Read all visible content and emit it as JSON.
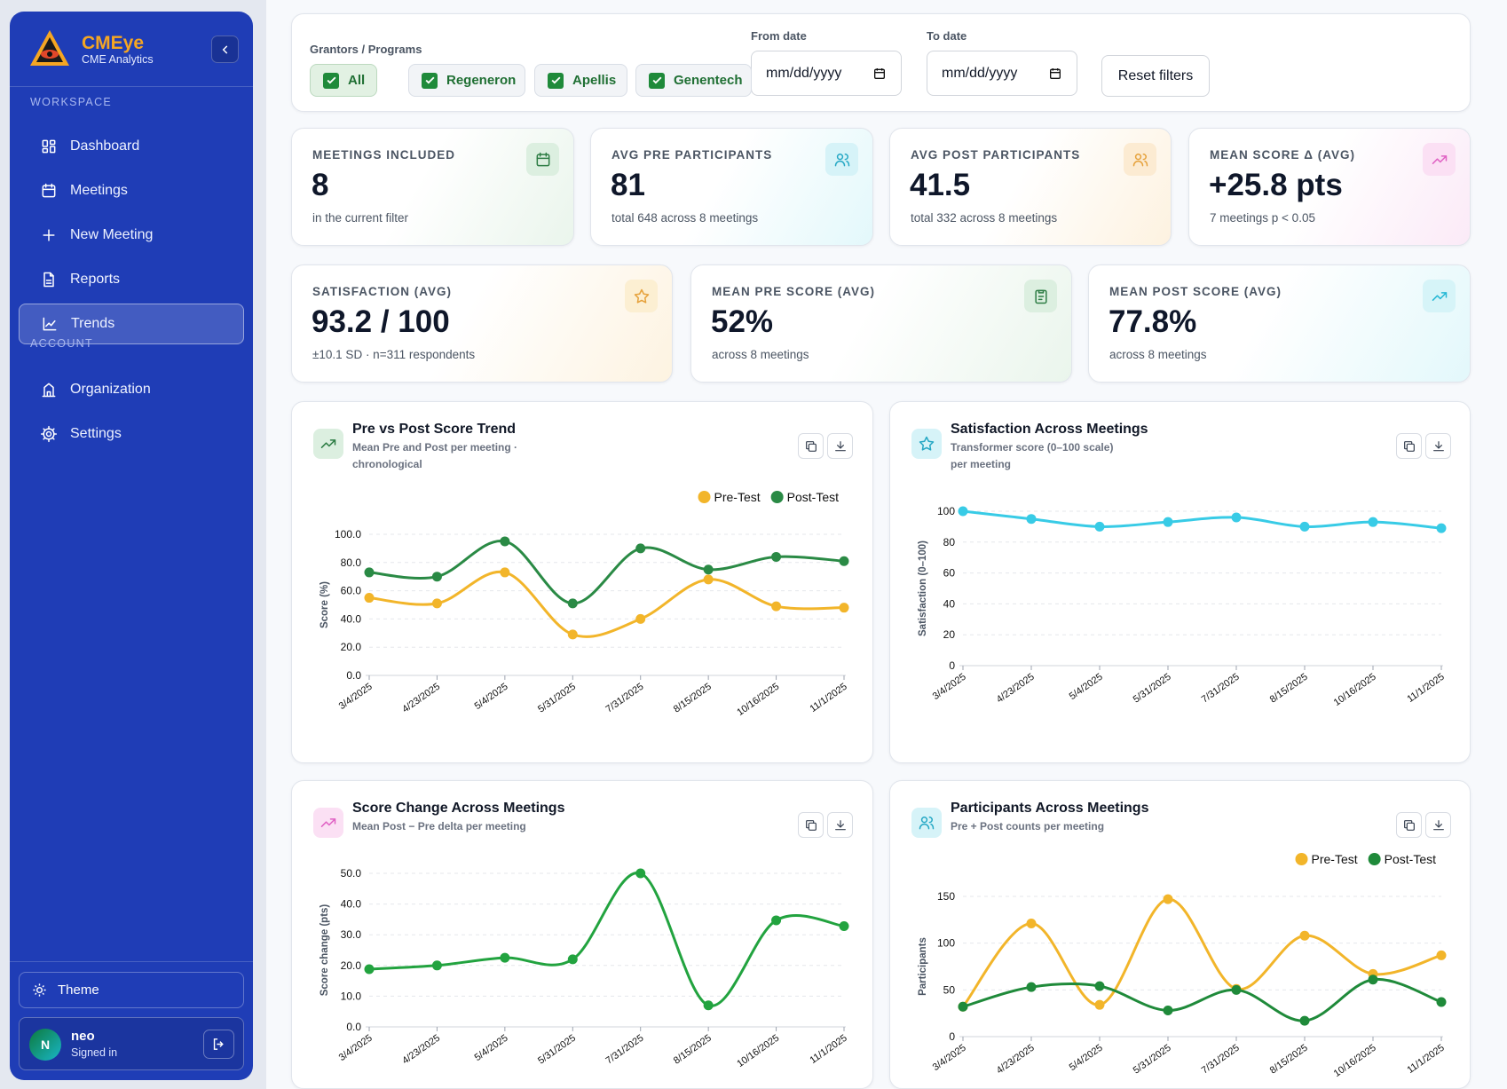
{
  "sidebar": {
    "brand": "CMEye",
    "brand_sub": "CME Analytics",
    "sections": [
      {
        "heading": "WORKSPACE",
        "items": [
          "Dashboard",
          "Meetings",
          "New Meeting",
          "Reports",
          "Trends"
        ]
      },
      {
        "heading": "ACCOUNT",
        "items": [
          "Organization",
          "Settings"
        ]
      }
    ],
    "active": "Trends",
    "theme": "Theme",
    "user": {
      "initial": "N",
      "name": "neo",
      "status": "Signed in"
    }
  },
  "filters": {
    "grantors_label": "Grantors / Programs",
    "options": [
      "All",
      "Regeneron",
      "Apellis",
      "Genentech"
    ],
    "from_label": "From date",
    "from_placeholder": "mm/dd/yyyy",
    "to_label": "To date",
    "to_placeholder": "mm/dd/yyyy",
    "reset": "Reset filters"
  },
  "kpis": [
    {
      "label": "MEETINGS INCLUDED",
      "value": "8",
      "note": "in the current filter"
    },
    {
      "label": "AVG PRE PARTICIPANTS",
      "value": "81",
      "note": "total 648 across 8 meetings"
    },
    {
      "label": "AVG POST PARTICIPANTS",
      "value": "41.5",
      "note": "total 332 across 8 meetings"
    },
    {
      "label": "MEAN SCORE Δ (AVG)",
      "value": "+25.8 pts",
      "note": "7 meetings p < 0.05"
    },
    {
      "label": "SATISFACTION (AVG)",
      "value": "93.2 / 100",
      "note": "±10.1 SD · n=311 respondents"
    },
    {
      "label": "MEAN PRE SCORE (AVG)",
      "value": "52%",
      "note": "across 8 meetings"
    },
    {
      "label": "MEAN POST SCORE (AVG)",
      "value": "77.8%",
      "note": "across 8 meetings"
    }
  ],
  "chart_data": [
    {
      "type": "line",
      "title": "Pre vs Post Score Trend",
      "subtitle": "Mean Pre and Post per meeting · chronological",
      "ylabel": "Score (%)",
      "categories": [
        "3/4/2025",
        "4/23/2025",
        "5/4/2025",
        "5/31/2025",
        "7/31/2025",
        "8/15/2025",
        "10/16/2025",
        "11/1/2025"
      ],
      "series": [
        {
          "name": "Pre-Test",
          "color": "#f2b52a",
          "values": [
            55,
            51,
            73,
            29,
            40,
            68,
            49,
            48
          ]
        },
        {
          "name": "Post-Test",
          "color": "#2a8a45",
          "values": [
            73,
            70,
            95,
            51,
            90,
            75,
            84,
            81
          ]
        }
      ],
      "ylim": [
        0,
        100
      ],
      "yticks": [
        {
          "value": 0,
          "label": "0.0"
        },
        {
          "value": 20,
          "label": "20.0"
        },
        {
          "value": 40,
          "label": "40.0"
        },
        {
          "value": 60,
          "label": "60.0"
        },
        {
          "value": 80,
          "label": "80.0"
        },
        {
          "value": 100,
          "label": "100.0"
        }
      ],
      "grid": true,
      "legend": "top-right"
    },
    {
      "type": "line",
      "title": "Satisfaction Across Meetings",
      "subtitle": "Transformer score (0–100 scale) per meeting",
      "ylabel": "Satisfaction (0–100)",
      "categories": [
        "3/4/2025",
        "4/23/2025",
        "5/4/2025",
        "5/31/2025",
        "7/31/2025",
        "8/15/2025",
        "10/16/2025",
        "11/1/2025"
      ],
      "color": "#38cbe6",
      "values": [
        100,
        95,
        90,
        93,
        96,
        90,
        93,
        89
      ],
      "ylim": [
        0,
        100
      ],
      "yticks": [
        0,
        20,
        40,
        60,
        80,
        100
      ],
      "grid": true
    },
    {
      "type": "line",
      "title": "Score Change Across Meetings",
      "subtitle": "Mean Post − Pre delta per meeting",
      "ylabel": "Score change (pts)",
      "categories": [
        "3/4/2025",
        "4/23/2025",
        "5/4/2025",
        "5/31/2025",
        "7/31/2025",
        "8/15/2025",
        "10/16/2025",
        "11/1/2025"
      ],
      "color": "#22a33f",
      "values": [
        18.8,
        20,
        22.5,
        22,
        50,
        7,
        34.7,
        32.8
      ],
      "ylim": [
        0,
        50
      ],
      "yticks": [
        {
          "value": 0,
          "label": "0.0"
        },
        {
          "value": 10,
          "label": "10.0"
        },
        {
          "value": 20,
          "label": "20.0"
        },
        {
          "value": 30,
          "label": "30.0"
        },
        {
          "value": 40,
          "label": "40.0"
        },
        {
          "value": 50,
          "label": "50.0"
        }
      ],
      "grid": true
    },
    {
      "type": "line",
      "title": "Participants Across Meetings",
      "subtitle": "Pre + Post counts per meeting",
      "ylabel": "Participants",
      "categories": [
        "3/4/2025",
        "4/23/2025",
        "5/4/2025",
        "5/31/2025",
        "7/31/2025",
        "8/15/2025",
        "10/16/2025",
        "11/1/2025"
      ],
      "series": [
        {
          "name": "Pre-Test",
          "color": "#f2b52a",
          "values": [
            32,
            121,
            34,
            147,
            51,
            108,
            67,
            87
          ]
        },
        {
          "name": "Post-Test",
          "color": "#1f8a3a",
          "values": [
            32,
            53,
            54,
            28,
            50,
            17,
            61,
            37
          ]
        }
      ],
      "ylim": [
        0,
        150
      ],
      "yticks": [
        0,
        50,
        100,
        150
      ],
      "grid": true,
      "legend": "top-right"
    }
  ]
}
